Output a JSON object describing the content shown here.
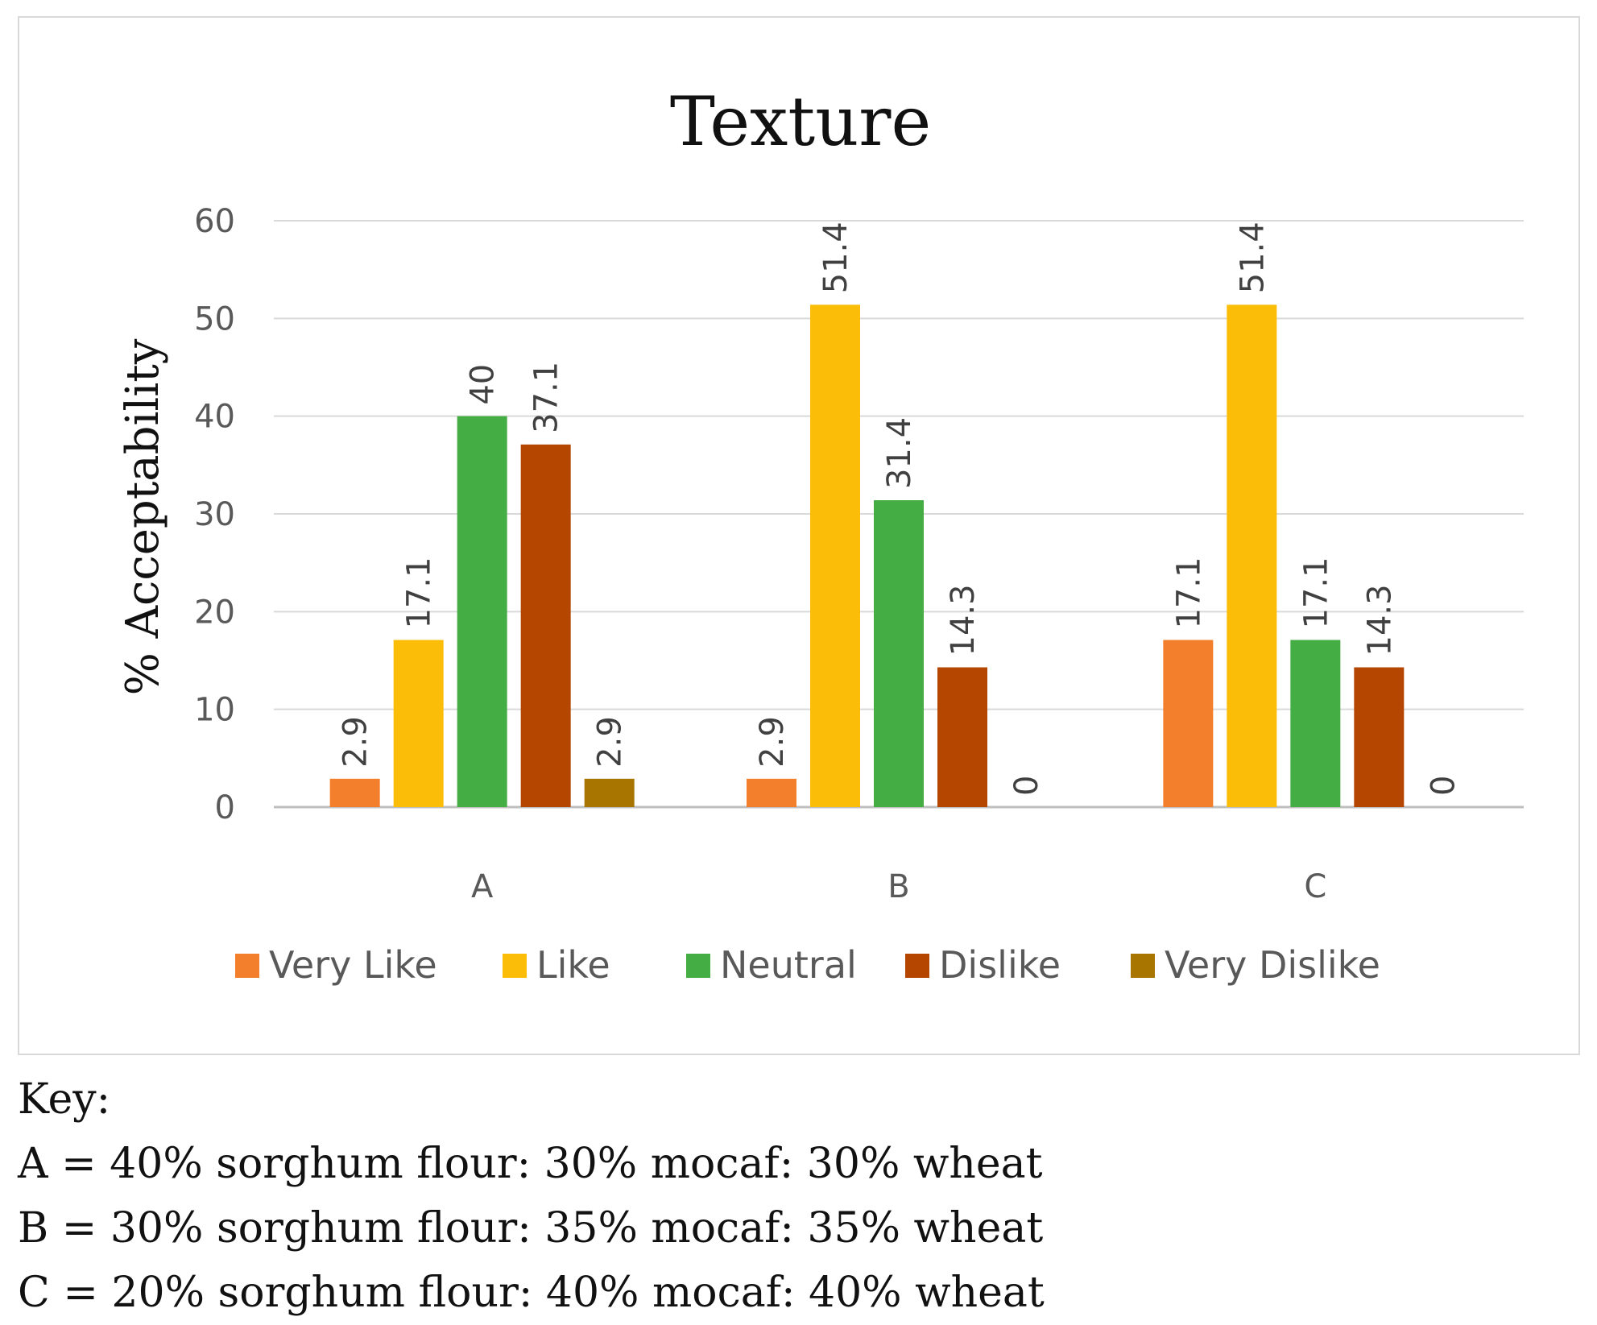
{
  "chart_data": {
    "type": "bar",
    "title": "Texture",
    "xlabel": "",
    "ylabel": "% Acceptability",
    "ylim": [
      0,
      60
    ],
    "yticks": [
      0,
      10,
      20,
      30,
      40,
      50,
      60
    ],
    "grid": true,
    "legend_position": "bottom",
    "categories": [
      "A",
      "B",
      "C"
    ],
    "series": [
      {
        "name": "Very Like",
        "color": "#f37f2c",
        "values": [
          2.9,
          2.9,
          17.1
        ],
        "labels": [
          "2.9",
          "2.9",
          "17.1"
        ]
      },
      {
        "name": "Like",
        "color": "#fbbd08",
        "values": [
          17.1,
          51.4,
          51.4
        ],
        "labels": [
          "17.1",
          "51.4",
          "51.4"
        ]
      },
      {
        "name": "Neutral",
        "color": "#44ad43",
        "values": [
          40,
          31.4,
          17.1
        ],
        "labels": [
          "40",
          "31.4",
          "17.1"
        ]
      },
      {
        "name": "Dislike",
        "color": "#b44600",
        "values": [
          37.1,
          14.3,
          14.3
        ],
        "labels": [
          "37.1",
          "14.3",
          "14.3"
        ]
      },
      {
        "name": "Very Dislike",
        "color": "#a87600",
        "values": [
          2.9,
          0,
          0
        ],
        "labels": [
          "2.9",
          "0",
          "0"
        ]
      }
    ]
  },
  "key": {
    "heading": "Key:",
    "lines": [
      "A = 40% sorghum flour: 30% mocaf: 30% wheat",
      "B = 30% sorghum flour: 35% mocaf: 35% wheat",
      "C = 20% sorghum flour: 40% mocaf: 40% wheat"
    ]
  }
}
